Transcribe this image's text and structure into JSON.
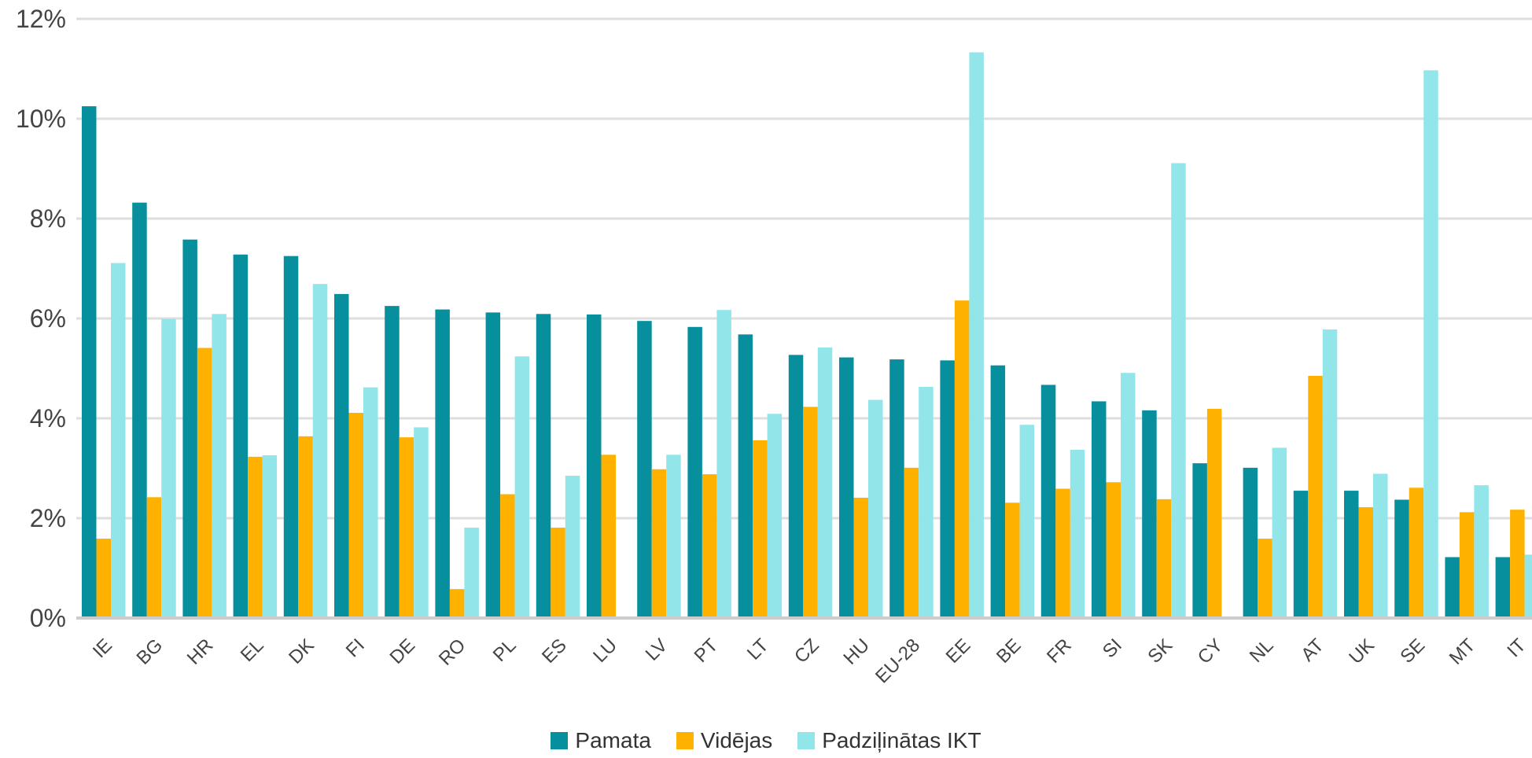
{
  "chart_data": {
    "type": "bar",
    "categories": [
      "IE",
      "BG",
      "HR",
      "EL",
      "DK",
      "FI",
      "DE",
      "RO",
      "PL",
      "ES",
      "LU",
      "LV",
      "PT",
      "LT",
      "CZ",
      "HU",
      "EU-28",
      "EE",
      "BE",
      "FR",
      "SI",
      "SK",
      "CY",
      "NL",
      "AT",
      "UK",
      "SE",
      "MT",
      "IT"
    ],
    "series": [
      {
        "name": "Pamata",
        "color": "#078f9e",
        "values": [
          10.25,
          8.32,
          7.58,
          7.28,
          7.25,
          6.49,
          6.25,
          6.18,
          6.12,
          6.09,
          6.08,
          5.95,
          5.83,
          5.68,
          5.27,
          5.22,
          5.18,
          5.16,
          5.06,
          4.67,
          4.34,
          4.16,
          3.1,
          3.01,
          2.55,
          2.55,
          2.37,
          1.22,
          1.22
        ]
      },
      {
        "name": "Vidējas",
        "color": "#ffb100",
        "values": [
          1.59,
          2.42,
          5.41,
          3.23,
          3.64,
          4.11,
          3.62,
          0.58,
          2.48,
          1.81,
          3.27,
          2.98,
          2.88,
          3.56,
          4.23,
          2.41,
          3.01,
          6.36,
          2.31,
          2.59,
          2.72,
          2.38,
          4.19,
          1.59,
          4.85,
          2.22,
          2.61,
          2.12,
          2.17
        ]
      },
      {
        "name": "Padziļinātas IKT",
        "color": "#92e6ea",
        "values": [
          7.11,
          5.99,
          6.09,
          3.26,
          6.69,
          4.62,
          3.82,
          1.81,
          5.24,
          2.85,
          null,
          3.27,
          6.17,
          4.09,
          5.42,
          4.37,
          4.63,
          11.33,
          3.87,
          3.37,
          4.91,
          9.11,
          null,
          3.41,
          5.78,
          2.89,
          10.97,
          2.66,
          1.27
        ]
      }
    ],
    "y_ticks": [
      "0%",
      "2%",
      "4%",
      "6%",
      "8%",
      "10%",
      "12%"
    ],
    "ylim": [
      0,
      12
    ],
    "grid": true,
    "legend_position": "bottom-center",
    "axis_color": "#cccccc",
    "tick_color": "#444444"
  }
}
